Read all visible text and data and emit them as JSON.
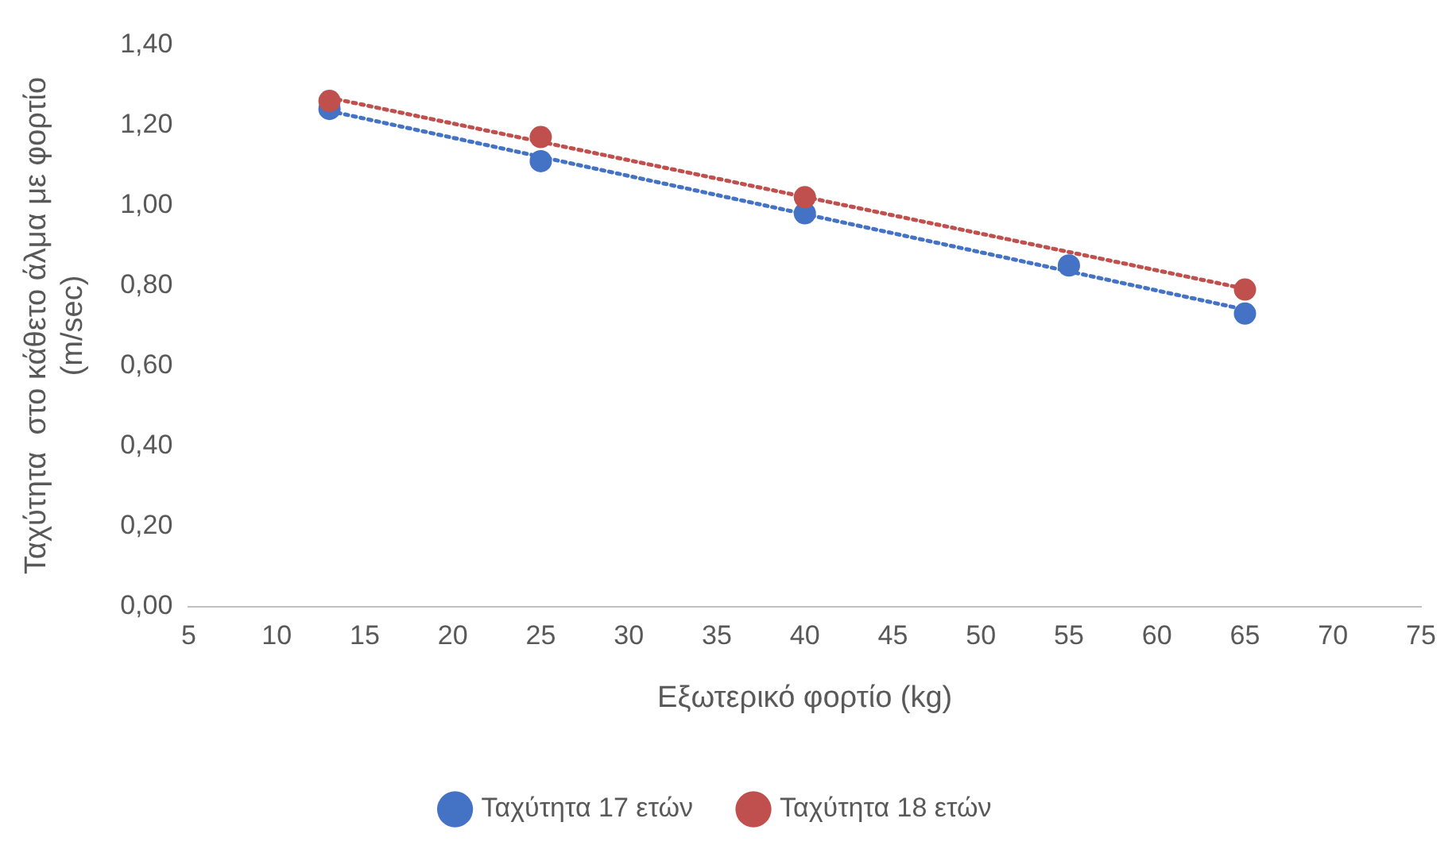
{
  "chart_data": {
    "type": "scatter",
    "xlabel": "Εξωτερικό φορτίο (kg)",
    "ylabel": "Ταχύτητα  στο κάθετο άλμα με φορτίο\n(m/sec)",
    "xlim": [
      5,
      75
    ],
    "xticks": [
      5,
      10,
      15,
      20,
      25,
      30,
      35,
      40,
      45,
      50,
      55,
      60,
      65,
      70,
      75
    ],
    "ylim": [
      0,
      1.4
    ],
    "yticks": [
      {
        "value": 0,
        "label": "0,00"
      },
      {
        "value": 0.2,
        "label": "0,20"
      },
      {
        "value": 0.4,
        "label": "0,40"
      },
      {
        "value": 0.6,
        "label": "0,60"
      },
      {
        "value": 0.8,
        "label": "0,80"
      },
      {
        "value": 1,
        "label": "1,00"
      },
      {
        "value": 1.2,
        "label": "1,20"
      },
      {
        "value": 1.4,
        "label": "1,40"
      }
    ],
    "grid": false,
    "legend": "bottom",
    "marker": "circle",
    "series": [
      {
        "name": "Ταχύτητα 17 ετών",
        "color": "#4472c4",
        "x": [
          13,
          25,
          40,
          55,
          65
        ],
        "values": [
          1.24,
          1.11,
          0.98,
          0.85,
          0.73
        ]
      },
      {
        "name": "Ταχύτητα 18 ετών",
        "color": "#c0504d",
        "x": [
          13,
          25,
          40,
          65
        ],
        "values": [
          1.26,
          1.17,
          1.02,
          0.79
        ]
      },
      {
        "type": "line",
        "color": "#4472c4",
        "x": [
          13,
          65
        ],
        "values": [
          1.235,
          0.74
        ],
        "marker": "none",
        "line_style": "dotted"
      },
      {
        "type": "line",
        "color": "#c0504d",
        "x": [
          13,
          65
        ],
        "values": [
          1.268,
          0.792
        ],
        "marker": "none",
        "line_style": "dotted"
      }
    ]
  }
}
